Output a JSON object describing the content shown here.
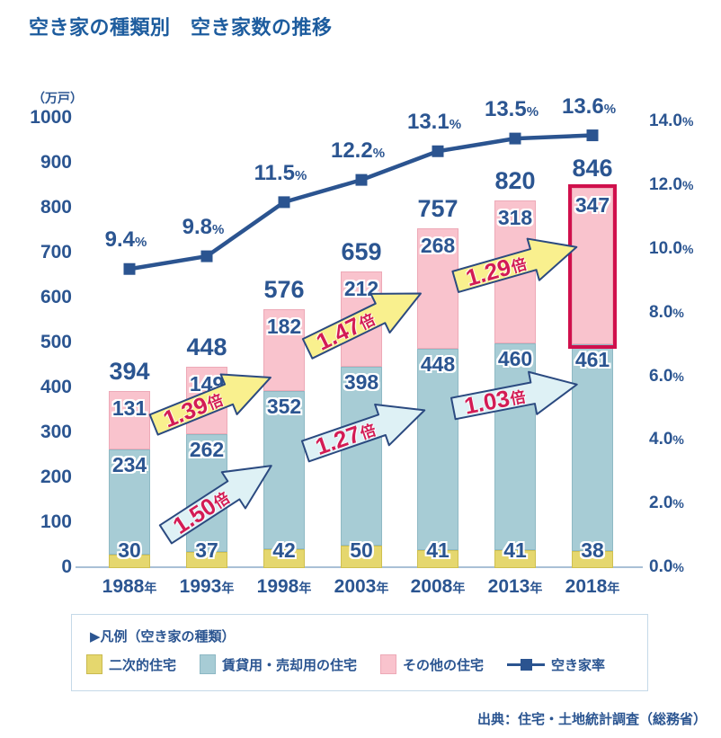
{
  "title": "空き家の種類別　空き家数の推移",
  "source": "出典：住宅・土地統計調査（総務省）",
  "colors": {
    "navy_text": "#2b5591",
    "title_blue": "#1d5c9e",
    "axis_line": "#a9c0d6",
    "crimson_highlight": "#d0104c",
    "arrow_text": "#d31c55",
    "arrow_border": "#2b4a80"
  },
  "legend": {
    "title": "▶凡例（空き家の種類）",
    "items": [
      {
        "label": "二次的住宅",
        "swatch": "#e5d76e",
        "swatch_border": "#c9ba50"
      },
      {
        "label": "賃貸用・売却用の住宅",
        "swatch": "#a7ccd5",
        "swatch_border": "#8db8c4"
      },
      {
        "label": "その他の住宅",
        "swatch": "#f9c3cd",
        "swatch_border": "#eda9b7"
      },
      {
        "label": "空き家率",
        "swatch": "line"
      }
    ]
  },
  "chart_data": {
    "type": "bar",
    "subtype": "stacked-bar-with-line",
    "title": "空き家の種類別　空き家数の推移",
    "unit_left": "（万戸）",
    "categories": [
      "1988",
      "1993",
      "1998",
      "2003",
      "2008",
      "2013",
      "2018"
    ],
    "category_suffix": "年",
    "series": [
      {
        "name": "二次的住宅",
        "color": "#e5d76e",
        "border": "#cfc050",
        "values": [
          30,
          37,
          42,
          50,
          41,
          41,
          38
        ]
      },
      {
        "name": "賃貸用・売却用の住宅",
        "color": "#a7ccd5",
        "border": "#8fb9c4",
        "values": [
          234,
          262,
          352,
          398,
          448,
          460,
          461
        ]
      },
      {
        "name": "その他の住宅",
        "color": "#f9c3cd",
        "border": "#eda9b7",
        "values": [
          131,
          149,
          182,
          212,
          268,
          318,
          347
        ]
      }
    ],
    "totals": [
      394,
      448,
      576,
      659,
      757,
      820,
      846
    ],
    "line_series": {
      "name": "空き家率",
      "color": "#2b5490",
      "unit": "%",
      "values": [
        9.4,
        9.8,
        11.5,
        12.2,
        13.1,
        13.5,
        13.6
      ]
    },
    "left_axis": {
      "min": 0,
      "max": 1000,
      "ticks": [
        0,
        100,
        200,
        300,
        400,
        500,
        600,
        700,
        800,
        900,
        1000
      ]
    },
    "right_axis": {
      "min": 0,
      "max": 14,
      "unit": "%",
      "ticks": [
        "0.0",
        "2.0",
        "4.0",
        "6.0",
        "8.0",
        "10.0",
        "12.0",
        "14.0"
      ]
    },
    "arrow_fills": {
      "yellow": "#f9f08e",
      "blue": "#def1f5"
    },
    "arrows": [
      {
        "factor": "1.39",
        "suffix": "倍",
        "style": "yellow"
      },
      {
        "factor": "1.50",
        "suffix": "倍",
        "style": "blue"
      },
      {
        "factor": "1.47",
        "suffix": "倍",
        "style": "yellow"
      },
      {
        "factor": "1.27",
        "suffix": "倍",
        "style": "blue"
      },
      {
        "factor": "1.29",
        "suffix": "倍",
        "style": "yellow"
      },
      {
        "factor": "1.03",
        "suffix": "倍",
        "style": "blue"
      }
    ],
    "highlight": {
      "category": "2018",
      "series": "その他の住宅",
      "value": 347,
      "border_color": "#d0104c"
    },
    "grid": false,
    "legend_position": "bottom"
  }
}
